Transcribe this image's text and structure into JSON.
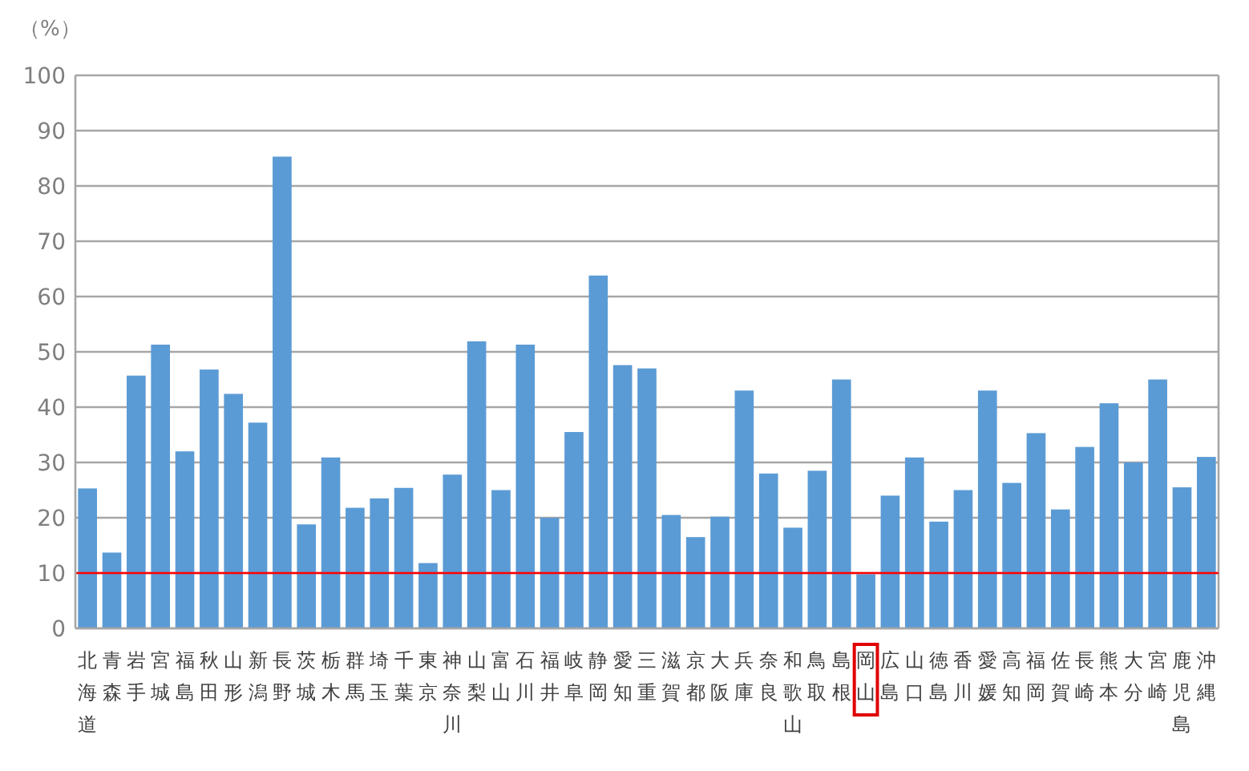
{
  "chart_data": {
    "type": "bar",
    "ylabel": "（%）",
    "categories": [
      "北海道",
      "青森",
      "岩手",
      "宮城",
      "福島",
      "秋田",
      "山形",
      "新潟",
      "長野",
      "茨城",
      "栃木",
      "群馬",
      "埼玉",
      "千葉",
      "東京",
      "神奈川",
      "山梨",
      "富山",
      "石川",
      "福井",
      "岐阜",
      "静岡",
      "愛知",
      "三重",
      "滋賀",
      "京都",
      "大阪",
      "兵庫",
      "奈良",
      "和歌山",
      "鳥取",
      "島根",
      "岡山",
      "広島",
      "山口",
      "徳島",
      "香川",
      "愛媛",
      "高知",
      "福岡",
      "佐賀",
      "長崎",
      "熊本",
      "大分",
      "宮崎",
      "鹿児島",
      "沖縄"
    ],
    "values": [
      25.3,
      13.7,
      45.7,
      51.3,
      32,
      46.8,
      42.4,
      37.2,
      85.3,
      18.8,
      30.9,
      21.8,
      23.5,
      25.4,
      11.8,
      27.8,
      51.9,
      25,
      51.3,
      20,
      35.5,
      63.8,
      47.6,
      47,
      20.5,
      16.5,
      20.2,
      43,
      28,
      18.2,
      28.5,
      45,
      9.8,
      24,
      30.9,
      19.3,
      25,
      43,
      26.3,
      35.3,
      21.5,
      32.8,
      40.7,
      30,
      45,
      25.5,
      31
    ],
    "color": "#5b9bd5",
    "ylim": [
      0,
      100
    ],
    "yticks": [
      0,
      10,
      20,
      30,
      40,
      50,
      60,
      70,
      80,
      90,
      100
    ],
    "grid": "y",
    "ref_lines": [
      {
        "axis": "y",
        "value": 10,
        "color": "#ff0000"
      }
    ]
  }
}
